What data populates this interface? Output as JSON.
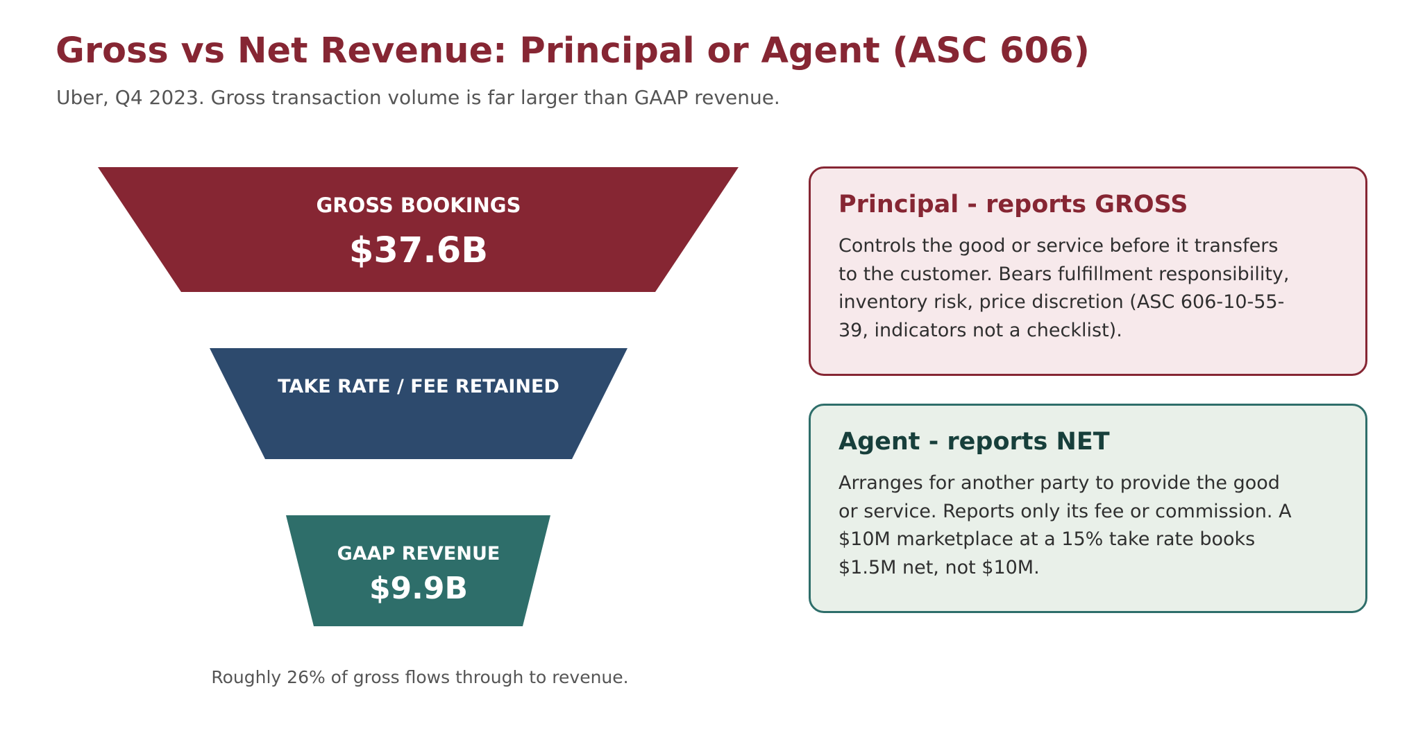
{
  "header": {
    "title": "Gross vs Net Revenue: Principal or Agent (ASC 606)",
    "subtitle": "Uber, Q4 2023. Gross transaction volume is far larger than GAAP revenue."
  },
  "funnel": {
    "stages": [
      {
        "label": "GROSS BOOKINGS",
        "value": "$37.6B",
        "color": "#862633"
      },
      {
        "label": "TAKE RATE / FEE RETAINED",
        "value": "",
        "color": "#2d4a6d"
      },
      {
        "label": "GAAP REVENUE",
        "value": "$9.9B",
        "color": "#2e6e6a"
      }
    ],
    "caption": "Roughly 26% of gross flows through to revenue."
  },
  "cards": {
    "principal": {
      "title": "Principal - reports GROSS",
      "body": "Controls the good or service before it transfers to the customer. Bears fulfillment responsibility, inventory risk, price discretion (ASC 606-10-55-39, indicators not a checklist).",
      "accent": "#862633",
      "background": "#f7e9eb"
    },
    "agent": {
      "title": "Agent - reports NET",
      "body": "Arranges for another party to provide the good or service. Reports only its fee or commission. A $10M marketplace at a 15% take rate books $1.5M net, not $10M.",
      "accent": "#2e6e6a",
      "title_color": "#173f3b",
      "background": "#e9f0e9"
    }
  }
}
